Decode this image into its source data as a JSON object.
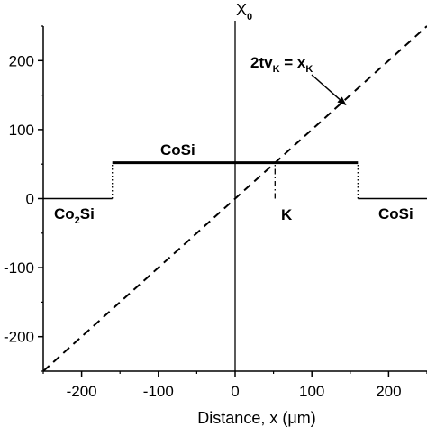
{
  "chart_data": {
    "type": "line",
    "xlabel": "Distance, x (μm)",
    "ylabel": "",
    "xlim": [
      -250,
      250
    ],
    "ylim": [
      -250,
      250
    ],
    "x_ticks": [
      -200,
      -100,
      0,
      100,
      200
    ],
    "x_tick_labels": [
      "-200",
      "-100",
      "0",
      "100",
      "200"
    ],
    "y_ticks": [
      -200,
      -100,
      0,
      100,
      200
    ],
    "y_tick_labels": [
      "-200",
      "-100",
      "0",
      "100",
      "200"
    ],
    "grid": false,
    "series": [
      {
        "style": "solid-step",
        "x": [
          -250,
          -160,
          -160,
          160,
          160,
          250
        ],
        "y": [
          0,
          0,
          52,
          52,
          0,
          0
        ]
      },
      {
        "style": "dashed",
        "x": [
          -250,
          250
        ],
        "y": [
          -250,
          250
        ]
      }
    ],
    "vertical_lines": {
      "origin": {
        "x": 0,
        "style": "solid"
      },
      "left_edge": {
        "x": -160,
        "y_range": [
          0,
          52
        ],
        "style": "dotted"
      },
      "right_edge": {
        "x": 160,
        "y_range": [
          0,
          52
        ],
        "style": "dotted"
      },
      "k_marker": {
        "x": 52,
        "y_range": [
          0,
          52
        ],
        "style": "dash-dot"
      }
    },
    "annotations": {
      "top_label_main": "X",
      "top_label_sub": "0",
      "cosi_top": "CoSi",
      "co2si_main": "Co",
      "co2si_sub": "2",
      "co2si_rest": "Si",
      "k_label": "K",
      "cosi_right": "CoSi",
      "eq_2tv": "2tv",
      "eq_sub1": "K",
      "eq_eq": " = x",
      "eq_sub2": "K",
      "arrow_tip": {
        "x": 145,
        "y": 135
      }
    }
  }
}
